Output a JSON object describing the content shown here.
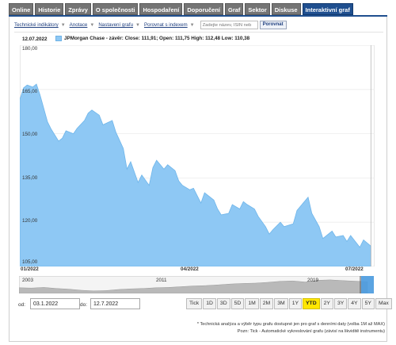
{
  "tabs": [
    {
      "label": "Online",
      "active": false
    },
    {
      "label": "Historie",
      "active": false
    },
    {
      "label": "Zprávy",
      "active": false
    },
    {
      "label": "O společnosti",
      "active": false
    },
    {
      "label": "Hospodaření",
      "active": false
    },
    {
      "label": "Doporučení",
      "active": false
    },
    {
      "label": "Graf",
      "active": false
    },
    {
      "label": "Sektor",
      "active": false
    },
    {
      "label": "Diskuse",
      "active": false
    },
    {
      "label": "Interaktivní graf",
      "active": true
    }
  ],
  "toolbar": {
    "technical": "Technické indikátory",
    "annotations": "Anotace",
    "settings": "Nastavení grafu",
    "compare_index": "Porovnat s indexem",
    "search_placeholder": "Zadejte název, ISIN neb",
    "compare_button": "Porovnat"
  },
  "chart_header": {
    "date": "12.07.2022",
    "legend": "JPMorgan Chase - závěr: Close: 111,91; Open: 111,75 High: 112,48 Low: 110,38",
    "legend_color": "#8ec8f4"
  },
  "chart_data": {
    "type": "area",
    "ylim": [
      105,
      180
    ],
    "y_ticks": [
      "180,00",
      "165,00",
      "150,00",
      "135,00",
      "120,00",
      "105,00"
    ],
    "x_ticks": [
      "01/2022",
      "04/2022",
      "07/2022"
    ],
    "x": [
      "2022-01-03",
      "2022-01-05",
      "2022-01-07",
      "2022-01-10",
      "2022-01-12",
      "2022-01-14",
      "2022-01-18",
      "2022-01-20",
      "2022-01-24",
      "2022-01-26",
      "2022-01-28",
      "2022-02-01",
      "2022-02-03",
      "2022-02-07",
      "2022-02-09",
      "2022-02-11",
      "2022-02-15",
      "2022-02-17",
      "2022-02-22",
      "2022-02-24",
      "2022-02-28",
      "2022-03-02",
      "2022-03-04",
      "2022-03-08",
      "2022-03-10",
      "2022-03-14",
      "2022-03-16",
      "2022-03-18",
      "2022-03-22",
      "2022-03-24",
      "2022-03-28",
      "2022-03-30",
      "2022-04-01",
      "2022-04-05",
      "2022-04-07",
      "2022-04-11",
      "2022-04-13",
      "2022-04-18",
      "2022-04-20",
      "2022-04-22",
      "2022-04-26",
      "2022-04-28",
      "2022-05-02",
      "2022-05-04",
      "2022-05-06",
      "2022-05-10",
      "2022-05-12",
      "2022-05-16",
      "2022-05-18",
      "2022-05-20",
      "2022-05-24",
      "2022-05-26",
      "2022-05-31",
      "2022-06-02",
      "2022-06-06",
      "2022-06-08",
      "2022-06-10",
      "2022-06-14",
      "2022-06-16",
      "2022-06-21",
      "2022-06-23",
      "2022-06-27",
      "2022-06-29",
      "2022-07-01",
      "2022-07-06",
      "2022-07-08",
      "2022-07-12"
    ],
    "series": [
      {
        "values": [
          161.5,
          165.5,
          166.5,
          165.8,
          166.8,
          163,
          154,
          151.5,
          147.5,
          148.5,
          151,
          150,
          151.8,
          154.5,
          157,
          158,
          156.3,
          153,
          154.5,
          150.5,
          145,
          138,
          140.5,
          133.5,
          136,
          132.5,
          138.5,
          141,
          138,
          139.5,
          137.5,
          134,
          132.5,
          131,
          131.5,
          126.5,
          130,
          127.5,
          124.5,
          122.5,
          123,
          126,
          124.5,
          127,
          126,
          124.5,
          122,
          118.5,
          116,
          117.5,
          120,
          118.5,
          119.5,
          124,
          127,
          128.5,
          123,
          118.5,
          114.5,
          117,
          115,
          115.5,
          113.5,
          115.5,
          111.5,
          114,
          111.91
        ]
      }
    ]
  },
  "navigator": {
    "labels": [
      "2003",
      "2011",
      "2019"
    ]
  },
  "range": {
    "from_label": "od:",
    "from_value": "03.1.2022",
    "to_label": "do:",
    "to_value": "12.7.2022"
  },
  "zoom_buttons": [
    {
      "label": "Tick",
      "selected": false
    },
    {
      "label": "1D",
      "selected": false
    },
    {
      "label": "3D",
      "selected": false
    },
    {
      "label": "5D",
      "selected": false
    },
    {
      "label": "1M",
      "selected": false
    },
    {
      "label": "2M",
      "selected": false
    },
    {
      "label": "3M",
      "selected": false
    },
    {
      "label": "1Y",
      "selected": false
    },
    {
      "label": "YTD",
      "selected": true
    },
    {
      "label": "2Y",
      "selected": false
    },
    {
      "label": "3Y",
      "selected": false
    },
    {
      "label": "4Y",
      "selected": false
    },
    {
      "label": "5Y",
      "selected": false
    },
    {
      "label": "Max",
      "selected": false
    }
  ],
  "notes": {
    "line1": "* Technická analýza a výběr typu grafu dostupné jen pro graf s denními daty (volba 1M až MAX)",
    "line2": "Pozn: Tick - Automatické vykreslování grafu (závisí na likviditě instrumentu)"
  }
}
